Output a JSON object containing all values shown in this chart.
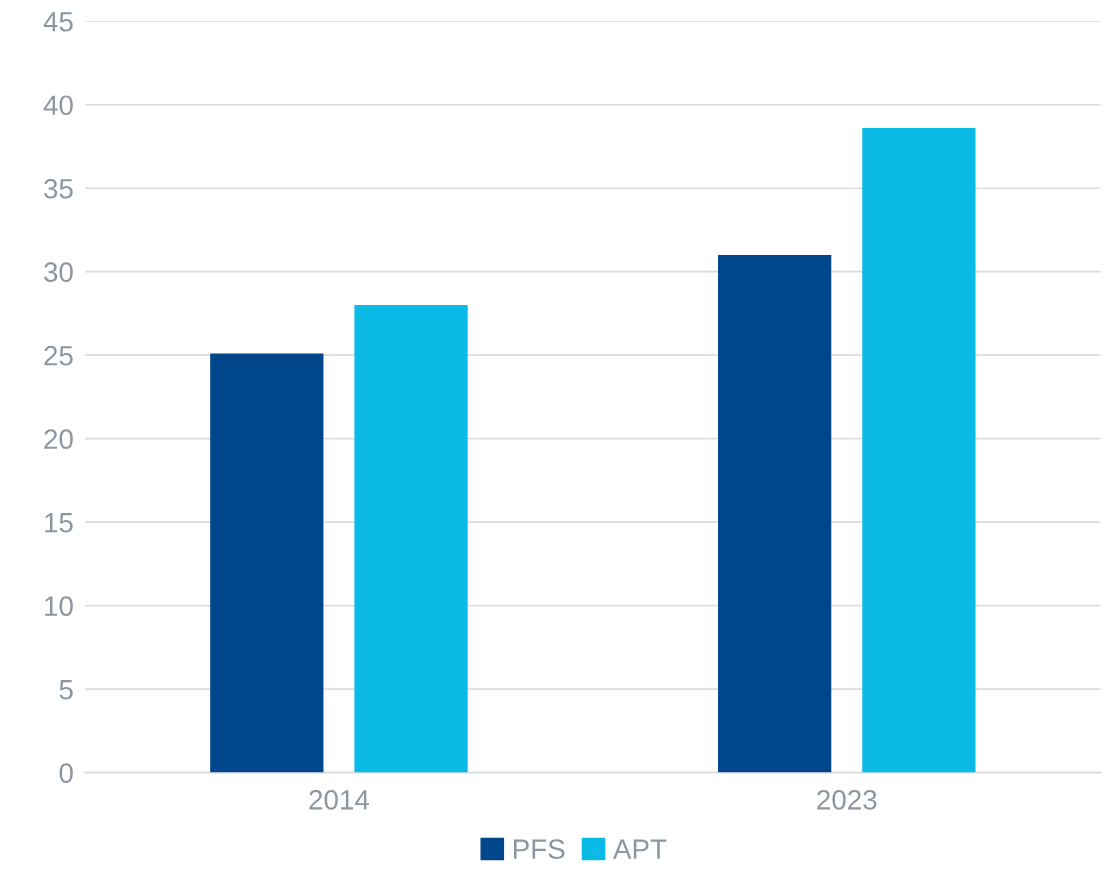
{
  "chart_data": {
    "type": "bar",
    "categories": [
      "2014",
      "2023"
    ],
    "series": [
      {
        "name": "PFS",
        "color": "#00468b",
        "values": [
          25.1,
          31.0
        ]
      },
      {
        "name": "APT",
        "color": "#0bbae5",
        "values": [
          28.0,
          38.6
        ]
      }
    ],
    "ylim": [
      0,
      45
    ],
    "yticks": [
      0,
      5,
      10,
      15,
      20,
      25,
      30,
      35,
      40,
      45
    ],
    "grid": "y",
    "legend": "bottom"
  }
}
